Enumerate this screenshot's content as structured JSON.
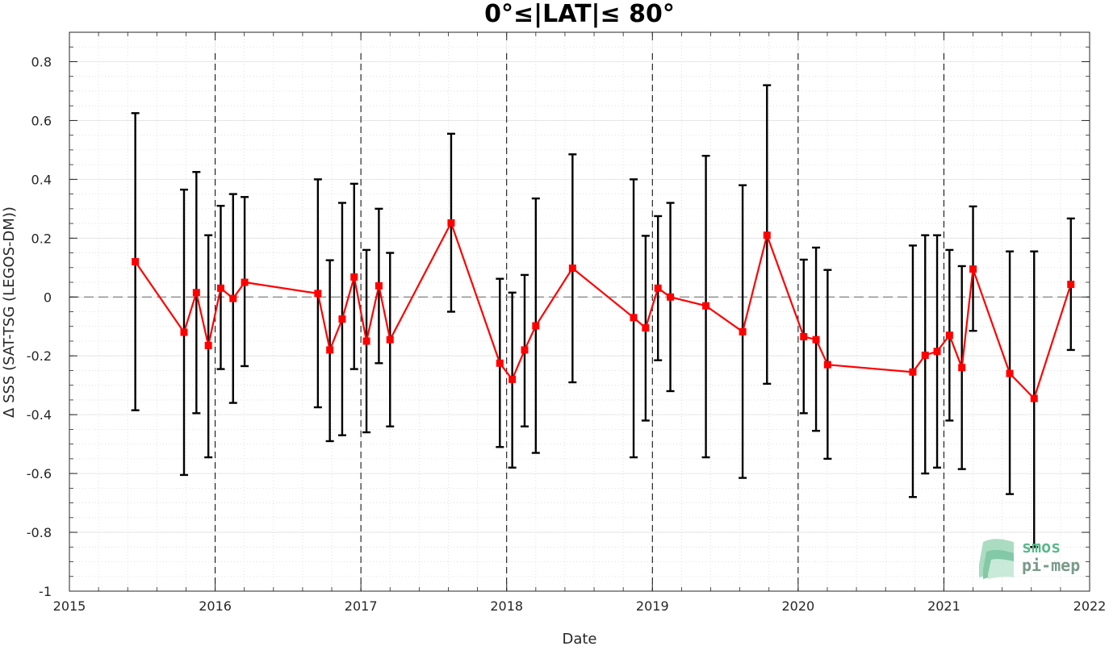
{
  "chart_data": {
    "type": "line",
    "title": "0°≤|LAT|≤ 80°",
    "xlabel": "Date",
    "ylabel": "Δ SSS (SAT-TSG (LEGOS-DM))",
    "xlim": [
      "2015-01-01",
      "2022-01-01"
    ],
    "ylim": [
      -1,
      0.9
    ],
    "x_ticks": [
      "2015",
      "2016",
      "2017",
      "2018",
      "2019",
      "2020",
      "2021",
      "2022"
    ],
    "y_ticks": [
      -1,
      -0.8,
      -0.6,
      -0.4,
      -0.2,
      0,
      0.2,
      0.4,
      0.6,
      0.8
    ],
    "y_tick_labels": [
      "-1",
      "-0.8",
      "-0.6",
      "-0.4",
      "-0.2",
      "0",
      "0.2",
      "0.4",
      "0.6",
      "0.8"
    ],
    "grid": true,
    "reference_line_y": 0,
    "year_boundaries": [
      "2016-01-01",
      "2017-01-01",
      "2018-01-01",
      "2019-01-01",
      "2020-01-01",
      "2021-01-01"
    ],
    "series": [
      {
        "color": "#ff0000",
        "errorbar_color": "#000000",
        "points": [
          {
            "x": "2015-06-15",
            "y": 0.12,
            "lo": -0.385,
            "hi": 0.625
          },
          {
            "x": "2015-10-15",
            "y": -0.12,
            "lo": -0.605,
            "hi": 0.365
          },
          {
            "x": "2015-11-15",
            "y": 0.015,
            "lo": -0.395,
            "hi": 0.425
          },
          {
            "x": "2015-12-15",
            "y": -0.165,
            "lo": -0.545,
            "hi": 0.21
          },
          {
            "x": "2016-01-15",
            "y": 0.03,
            "lo": -0.245,
            "hi": 0.31
          },
          {
            "x": "2016-02-15",
            "y": -0.005,
            "lo": -0.36,
            "hi": 0.35
          },
          {
            "x": "2016-03-15",
            "y": 0.05,
            "lo": -0.235,
            "hi": 0.34
          },
          {
            "x": "2016-09-15",
            "y": 0.012,
            "lo": -0.375,
            "hi": 0.4
          },
          {
            "x": "2016-10-15",
            "y": -0.18,
            "lo": -0.49,
            "hi": 0.125
          },
          {
            "x": "2016-11-15",
            "y": -0.075,
            "lo": -0.47,
            "hi": 0.32
          },
          {
            "x": "2016-12-15",
            "y": 0.068,
            "lo": -0.245,
            "hi": 0.385
          },
          {
            "x": "2017-01-15",
            "y": -0.15,
            "lo": -0.46,
            "hi": 0.16
          },
          {
            "x": "2017-02-15",
            "y": 0.038,
            "lo": -0.225,
            "hi": 0.3
          },
          {
            "x": "2017-03-15",
            "y": -0.145,
            "lo": -0.44,
            "hi": 0.15
          },
          {
            "x": "2017-08-15",
            "y": 0.252,
            "lo": -0.05,
            "hi": 0.555
          },
          {
            "x": "2017-12-15",
            "y": -0.225,
            "lo": -0.51,
            "hi": 0.062
          },
          {
            "x": "2018-01-15",
            "y": -0.28,
            "lo": -0.58,
            "hi": 0.015
          },
          {
            "x": "2018-02-15",
            "y": -0.18,
            "lo": -0.44,
            "hi": 0.075
          },
          {
            "x": "2018-03-15",
            "y": -0.098,
            "lo": -0.53,
            "hi": 0.335
          },
          {
            "x": "2018-06-15",
            "y": 0.098,
            "lo": -0.29,
            "hi": 0.485
          },
          {
            "x": "2018-11-15",
            "y": -0.07,
            "lo": -0.545,
            "hi": 0.4
          },
          {
            "x": "2018-12-15",
            "y": -0.105,
            "lo": -0.42,
            "hi": 0.208
          },
          {
            "x": "2019-01-15",
            "y": 0.03,
            "lo": -0.215,
            "hi": 0.275
          },
          {
            "x": "2019-02-15",
            "y": 0.0,
            "lo": -0.32,
            "hi": 0.32
          },
          {
            "x": "2019-05-15",
            "y": -0.03,
            "lo": -0.545,
            "hi": 0.48
          },
          {
            "x": "2019-08-15",
            "y": -0.118,
            "lo": -0.615,
            "hi": 0.38
          },
          {
            "x": "2019-10-15",
            "y": 0.21,
            "lo": -0.295,
            "hi": 0.72
          },
          {
            "x": "2020-01-15",
            "y": -0.135,
            "lo": -0.395,
            "hi": 0.127
          },
          {
            "x": "2020-02-15",
            "y": -0.145,
            "lo": -0.455,
            "hi": 0.168
          },
          {
            "x": "2020-03-15",
            "y": -0.23,
            "lo": -0.55,
            "hi": 0.092
          },
          {
            "x": "2020-10-15",
            "y": -0.255,
            "lo": -0.68,
            "hi": 0.175
          },
          {
            "x": "2020-11-15",
            "y": -0.198,
            "lo": -0.6,
            "hi": 0.21
          },
          {
            "x": "2020-12-15",
            "y": -0.185,
            "lo": -0.58,
            "hi": 0.21
          },
          {
            "x": "2021-01-15",
            "y": -0.13,
            "lo": -0.42,
            "hi": 0.16
          },
          {
            "x": "2021-02-15",
            "y": -0.24,
            "lo": -0.585,
            "hi": 0.105
          },
          {
            "x": "2021-03-15",
            "y": 0.095,
            "lo": -0.115,
            "hi": 0.308
          },
          {
            "x": "2021-06-15",
            "y": -0.26,
            "lo": -0.67,
            "hi": 0.155
          },
          {
            "x": "2021-08-15",
            "y": -0.345,
            "lo": -0.85,
            "hi": 0.155
          },
          {
            "x": "2021-11-15",
            "y": 0.043,
            "lo": -0.18,
            "hi": 0.267
          }
        ]
      }
    ]
  },
  "logo": {
    "line1": "smos",
    "line2": "pi-mep",
    "color": "#5ab88a"
  }
}
